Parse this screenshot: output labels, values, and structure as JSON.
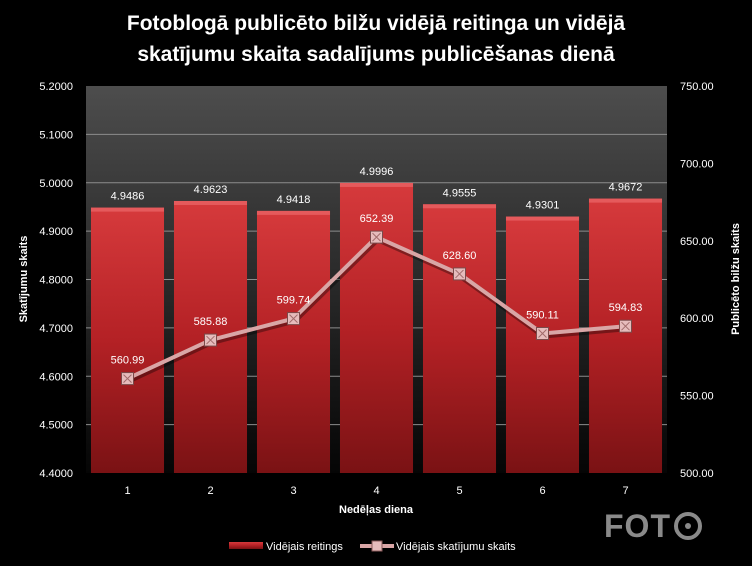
{
  "chart_data": {
    "type": "bar",
    "title": "Fotoblogā publicēto bilžu vidējā reitinga un vidējā skatījumu skaita sadalījums publicēšanas dienā",
    "title_lines": [
      "Fotoblogā publicēto bilžu vidējā reitinga un vidējā",
      "skatījumu skaita sadalījums publicēšanas dienā"
    ],
    "xlabel": "Nedēļas diena",
    "ylabel_left": "Skatījumu skaits",
    "ylabel_right": "Publicēto bilžu skaits",
    "categories": [
      "1",
      "2",
      "3",
      "4",
      "5",
      "6",
      "7"
    ],
    "ylim_left": [
      4.4,
      5.2
    ],
    "ylim_right": [
      500,
      750
    ],
    "y_ticks_left": [
      "4.4000",
      "4.5000",
      "4.6000",
      "4.7000",
      "4.8000",
      "4.9000",
      "5.0000",
      "5.1000",
      "5.2000"
    ],
    "y_ticks_right": [
      "500.00",
      "550.00",
      "600.00",
      "650.00",
      "700.00",
      "750.00"
    ],
    "series": [
      {
        "name": "Vidējais reitings",
        "type": "bar",
        "axis": "left",
        "values": [
          4.9486,
          4.9623,
          4.9418,
          4.9996,
          4.9555,
          4.9301,
          4.9672
        ],
        "labels": [
          "4.9486",
          "4.9623",
          "4.9418",
          "4.9996",
          "4.9555",
          "4.9301",
          "4.9672"
        ],
        "color": "#c0282b"
      },
      {
        "name": "Vidējais skatījumu skaits",
        "type": "line",
        "axis": "right",
        "values": [
          560.99,
          585.88,
          599.74,
          652.39,
          628.6,
          590.11,
          594.83
        ],
        "labels": [
          "560.99",
          "585.88",
          "599.74",
          "652.39",
          "628.60",
          "590.11",
          "594.83"
        ],
        "color": "#d9a6a6"
      }
    ],
    "grid": true,
    "legend_position": "bottom"
  },
  "colors": {
    "plot_bg_top": "#4a4a4a",
    "plot_bg_bottom": "#0a0a0a",
    "gridline": "#8c8c8c",
    "bar": "#c0282b",
    "line": "#d9a6a6",
    "marker": "#e6bcbc"
  },
  "logo": {
    "text": "FOT",
    "icon": "lens-o-icon"
  }
}
